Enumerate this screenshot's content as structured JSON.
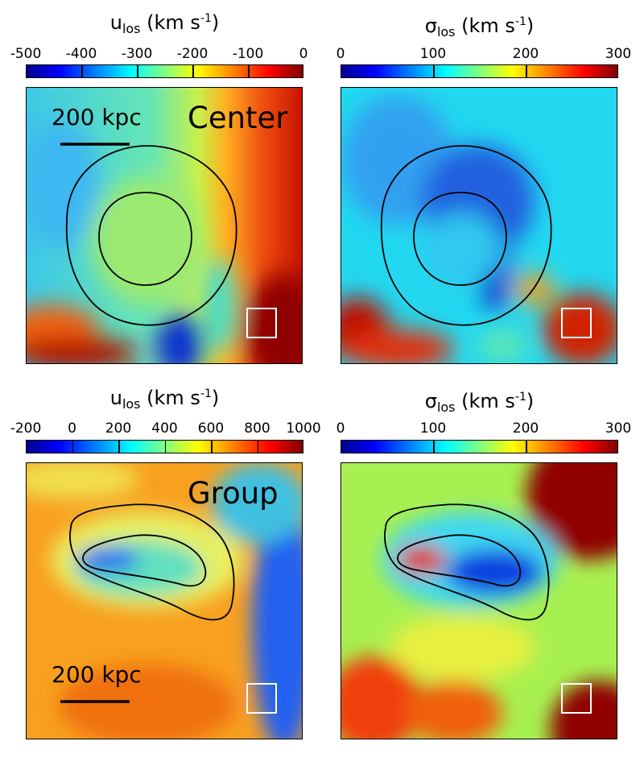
{
  "chart_data": [
    {
      "type": "heatmap",
      "row_label": "Center",
      "title_main": "u",
      "title_sub": "los",
      "title_unit": "(km s",
      "title_sup": "-1",
      "title_close": ")",
      "colorbar_ticks": [
        "-500",
        "-400",
        "-300",
        "-200",
        "-100",
        "0"
      ],
      "colorbar_range": [
        -500,
        0
      ],
      "scale_bar": "200 kpc"
    },
    {
      "type": "heatmap",
      "row_label": "Center",
      "title_main": "σ",
      "title_sub": "los",
      "title_unit": "(km s",
      "title_sup": "-1",
      "title_close": ")",
      "colorbar_ticks": [
        "0",
        "100",
        "200",
        "300"
      ],
      "colorbar_range": [
        0,
        300
      ]
    },
    {
      "type": "heatmap",
      "row_label": "Group",
      "title_main": "u",
      "title_sub": "los",
      "title_unit": "(km s",
      "title_sup": "-1",
      "title_close": ")",
      "colorbar_ticks": [
        "-200",
        "0",
        "200",
        "400",
        "600",
        "800",
        "1000"
      ],
      "colorbar_range": [
        -200,
        1000
      ],
      "scale_bar": "200 kpc"
    },
    {
      "type": "heatmap",
      "row_label": "Group",
      "title_main": "σ",
      "title_sub": "los",
      "title_unit": "(km s",
      "title_sup": "-1",
      "title_close": ")",
      "colorbar_ticks": [
        "0",
        "100",
        "200",
        "300"
      ],
      "colorbar_range": [
        0,
        300
      ]
    }
  ]
}
